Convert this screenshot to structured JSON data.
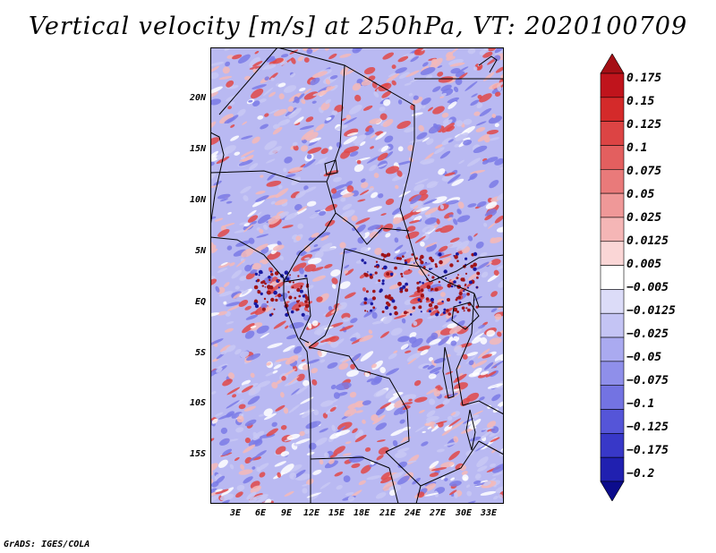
{
  "title": "Vertical velocity [m/s] at 250hPa, VT: 2020100709",
  "footer": "GrADS: IGES/COLA",
  "map": {
    "variable": "Vertical velocity",
    "units": "m/s",
    "level": "250hPa",
    "valid_time": "2020100709",
    "lat_labels": [
      "20N",
      "15N",
      "10N",
      "5N",
      "EQ",
      "5S",
      "10S",
      "15S"
    ],
    "lon_labels": [
      "3E",
      "6E",
      "9E",
      "12E",
      "15E",
      "18E",
      "21E",
      "24E",
      "27E",
      "30E",
      "33E"
    ],
    "lon_range": [
      0,
      35
    ],
    "lat_range": [
      -20,
      25
    ]
  },
  "colorbar": {
    "labels": [
      "0.175",
      "0.15",
      "0.125",
      "0.1",
      "0.075",
      "0.05",
      "0.025",
      "0.0125",
      "0.005",
      "−0.005",
      "−0.0125",
      "−0.025",
      "−0.05",
      "−0.075",
      "−0.1",
      "−0.125",
      "−0.175",
      "−0.2"
    ],
    "colors": [
      "#a50f15",
      "#c0141c",
      "#d42a2a",
      "#dc4444",
      "#e35f5f",
      "#e97a7a",
      "#ef9898",
      "#f5b6b6",
      "#fad6d6",
      "#ffffff",
      "#dcdcf8",
      "#c4c4f4",
      "#aaaaf0",
      "#8f8fea",
      "#7373e2",
      "#5555d8",
      "#3838c8",
      "#2020b0",
      "#0c0c8c"
    ]
  },
  "palette": {
    "red": "#e04848",
    "pink": "#f5b8b8",
    "white": "#ffffff",
    "lightblue": "#c8c8f4",
    "blue": "#7a7ae6",
    "darkred": "#a01418",
    "darkblue": "#1a1aa0"
  }
}
